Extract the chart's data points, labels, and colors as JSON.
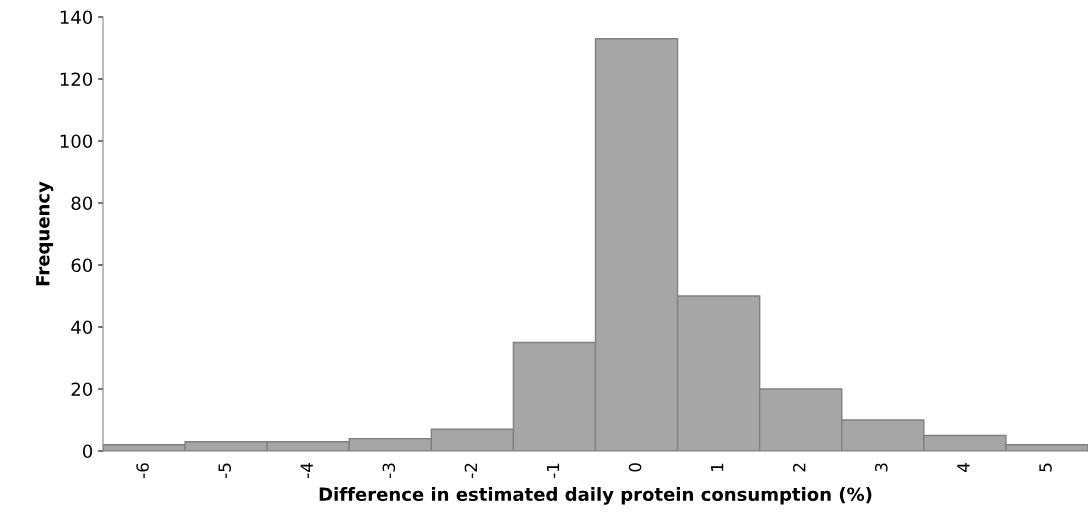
{
  "chart_data": {
    "type": "bar",
    "xlabel": "Difference in estimated daily protein consumption (%)",
    "ylabel": "Frequency",
    "categories": [
      "-6",
      "-5",
      "-4",
      "-3",
      "-2",
      "-1",
      "0",
      "1",
      "2",
      "3",
      "4",
      "5"
    ],
    "values": [
      2,
      3,
      3,
      4,
      7,
      35,
      133,
      50,
      20,
      10,
      5,
      2
    ],
    "color": "#a6a6a6",
    "ylim": [
      0,
      140
    ],
    "yticks": [
      0,
      20,
      40,
      60,
      80,
      100,
      120,
      140
    ],
    "grid": false,
    "legend": false
  }
}
